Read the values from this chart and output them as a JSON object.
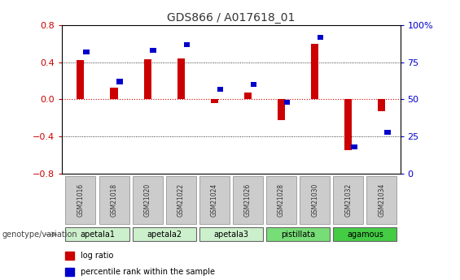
{
  "title": "GDS866 / A017618_01",
  "samples": [
    "GSM21016",
    "GSM21018",
    "GSM21020",
    "GSM21022",
    "GSM21024",
    "GSM21026",
    "GSM21028",
    "GSM21030",
    "GSM21032",
    "GSM21034"
  ],
  "log_ratio": [
    0.42,
    0.13,
    0.43,
    0.44,
    -0.04,
    0.07,
    -0.22,
    0.6,
    -0.55,
    -0.13
  ],
  "percentile_rank": [
    82,
    62,
    83,
    87,
    57,
    60,
    48,
    92,
    18,
    28
  ],
  "groups": [
    {
      "label": "apetala1",
      "indices": [
        0,
        1
      ],
      "color": "#ccf0cc"
    },
    {
      "label": "apetala2",
      "indices": [
        2,
        3
      ],
      "color": "#ccf0cc"
    },
    {
      "label": "apetala3",
      "indices": [
        4,
        5
      ],
      "color": "#ccf0cc"
    },
    {
      "label": "pistillata",
      "indices": [
        6,
        7
      ],
      "color": "#77dd77"
    },
    {
      "label": "agamous",
      "indices": [
        8,
        9
      ],
      "color": "#44cc44"
    }
  ],
  "ylim_left": [
    -0.8,
    0.8
  ],
  "ylim_right": [
    0,
    100
  ],
  "yticks_left": [
    -0.8,
    -0.4,
    0.0,
    0.4,
    0.8
  ],
  "yticks_right": [
    0,
    25,
    50,
    75,
    100
  ],
  "ytick_labels_right": [
    "0",
    "25",
    "50",
    "75",
    "100%"
  ],
  "log_ratio_color": "#cc0000",
  "percentile_color": "#0000cc",
  "sample_box_color": "#cccccc",
  "zero_line_color": "#cc0000",
  "title_color": "#333333",
  "figsize": [
    5.65,
    3.45
  ],
  "dpi": 100
}
